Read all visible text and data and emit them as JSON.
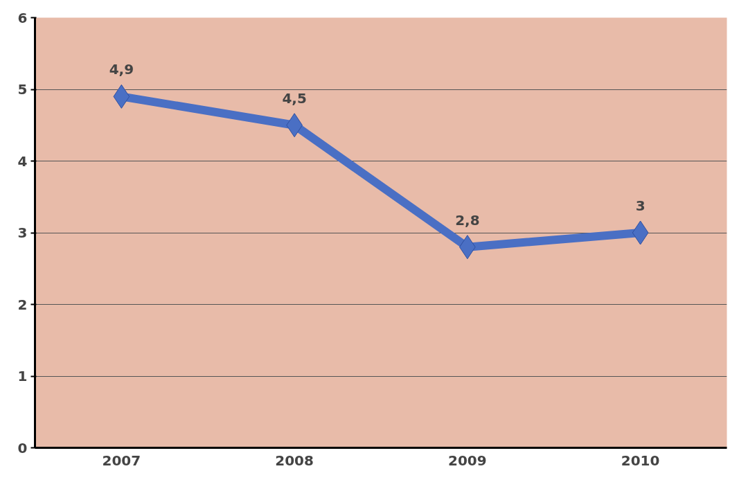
{
  "chart_data": {
    "type": "line",
    "categories": [
      "2007",
      "2008",
      "2009",
      "2010"
    ],
    "series": [
      {
        "color": "#4a6fc4",
        "values": [
          4.9,
          4.5,
          2.8,
          3
        ],
        "value_labels": [
          "4,9",
          "4,5",
          "2,8",
          "3"
        ]
      }
    ],
    "ylim": [
      0,
      6
    ],
    "yticks": [
      0,
      1,
      2,
      3,
      4,
      5,
      6
    ],
    "grid": "y",
    "marker": "diamond",
    "line_style": "solid"
  }
}
